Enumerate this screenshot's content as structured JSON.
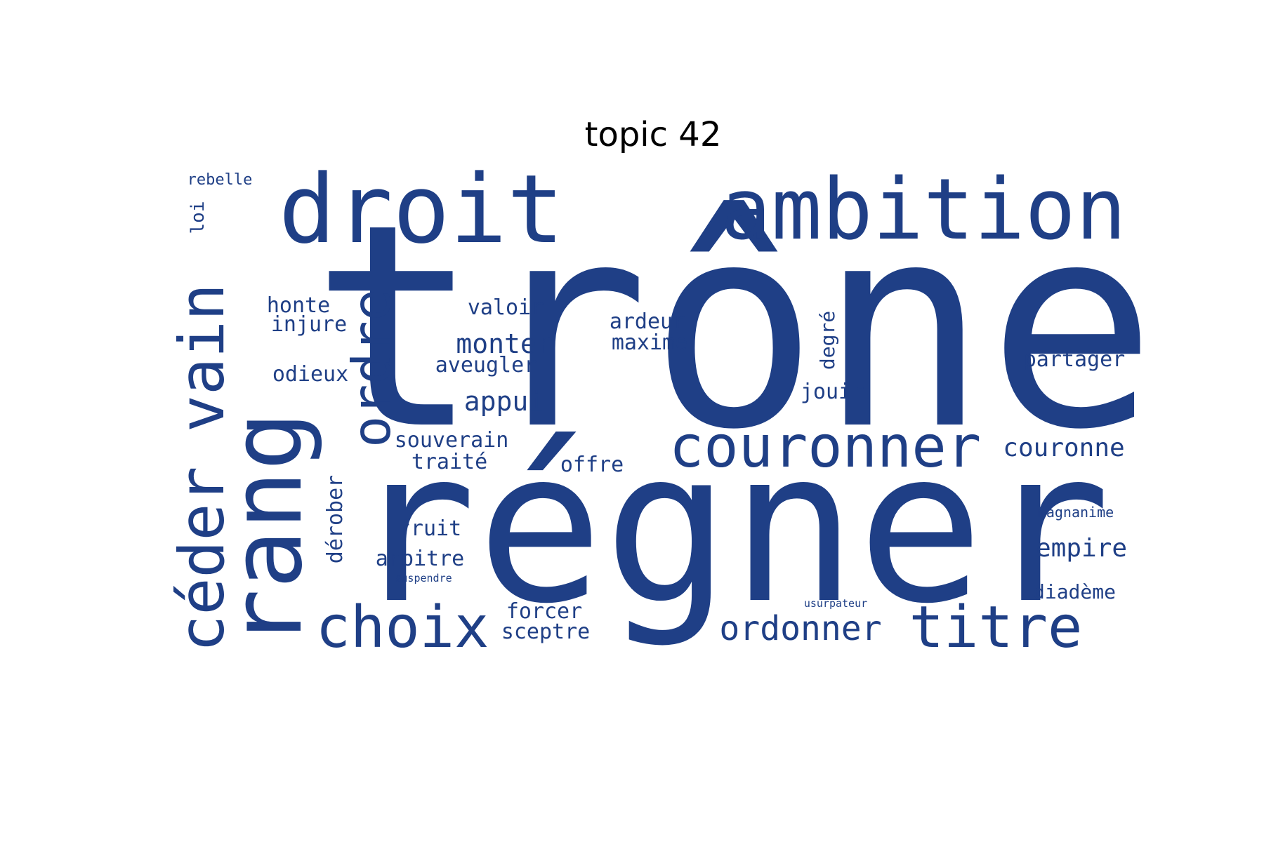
{
  "title": "topic 42",
  "word_color": "#1f3f86",
  "words": [
    {
      "text": "trône"
    },
    {
      "text": "régner"
    },
    {
      "text": "droit"
    },
    {
      "text": "ambition"
    },
    {
      "text": "couronner"
    },
    {
      "text": "rang"
    },
    {
      "text": "céder"
    },
    {
      "text": "vain"
    },
    {
      "text": "ordre"
    },
    {
      "text": "choix"
    },
    {
      "text": "titre"
    },
    {
      "text": "ordonner"
    },
    {
      "text": "couronne"
    },
    {
      "text": "monter"
    },
    {
      "text": "appui"
    },
    {
      "text": "valoir"
    },
    {
      "text": "aveugler"
    },
    {
      "text": "honte"
    },
    {
      "text": "injure"
    },
    {
      "text": "odieux"
    },
    {
      "text": "souverain"
    },
    {
      "text": "traité"
    },
    {
      "text": "offre"
    },
    {
      "text": "fruit"
    },
    {
      "text": "arbitre"
    },
    {
      "text": "dérober"
    },
    {
      "text": "forcer"
    },
    {
      "text": "sceptre"
    },
    {
      "text": "ardeur"
    },
    {
      "text": "maxime"
    },
    {
      "text": "degré"
    },
    {
      "text": "jouir"
    },
    {
      "text": "partager"
    },
    {
      "text": "empire"
    },
    {
      "text": "diadème"
    },
    {
      "text": "magnanime"
    },
    {
      "text": "usurpateur"
    },
    {
      "text": "suspendre"
    },
    {
      "text": "rebelle"
    },
    {
      "text": "loi"
    }
  ]
}
